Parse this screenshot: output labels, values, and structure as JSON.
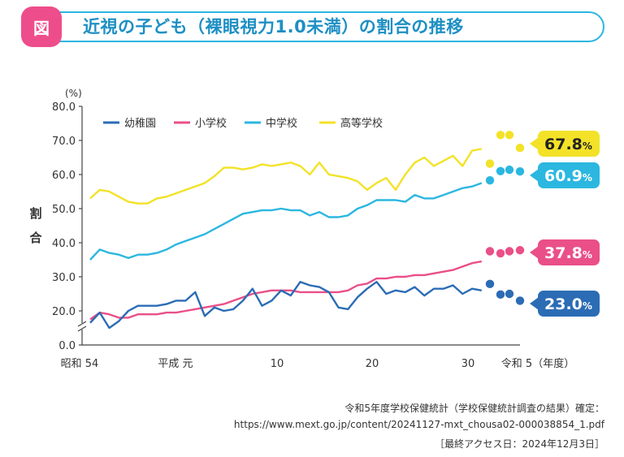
{
  "header": {
    "badge": "図",
    "title": "近視の子ども（裸眼視力1.0未満）の割合の推移"
  },
  "chart_data": {
    "type": "line",
    "ylabel": "割合",
    "yunit": "(%)",
    "ylim": [
      0,
      80
    ],
    "yticks": [
      "0.0",
      "20.0",
      "30.0",
      "40.0",
      "50.0",
      "60.0",
      "70.0",
      "80.0"
    ],
    "xtick_labels": [
      {
        "label": "昭和 54",
        "year": 1979
      },
      {
        "label": "平成 元",
        "year": 1989
      },
      {
        "label": "10",
        "year": 1998
      },
      {
        "label": "20",
        "year": 2008
      },
      {
        "label": "30",
        "year": 2018
      },
      {
        "label": "令和 5（年度）",
        "year": 2023
      }
    ],
    "legend": [
      {
        "name": "幼稚園",
        "color": "#2b6cb5"
      },
      {
        "name": "小学校",
        "color": "#ea4f88"
      },
      {
        "name": "中学校",
        "color": "#2bb7e0"
      },
      {
        "name": "高等学校",
        "color": "#f3e227"
      }
    ],
    "x_start_year": 1979,
    "series": [
      {
        "name": "幼稚園",
        "color": "#2b6cb5",
        "values": [
          16.5,
          19.5,
          15.0,
          17.0,
          20.0,
          21.5,
          21.5,
          21.5,
          22.0,
          23.0,
          23.0,
          25.5,
          18.5,
          21.0,
          20.0,
          20.5,
          23.0,
          26.5,
          21.5,
          23.0,
          26.0,
          24.5,
          28.5,
          27.5,
          27.0,
          25.5,
          21.0,
          20.5,
          24.0,
          26.5,
          28.5,
          25.0,
          26.0,
          25.5,
          27.0,
          24.5,
          26.5,
          26.5,
          27.5,
          25.0,
          26.5,
          26.0
        ],
        "dots": [
          27.9,
          24.8,
          25.0,
          23.0
        ]
      },
      {
        "name": "小学校",
        "color": "#ea4f88",
        "values": [
          17.5,
          19.5,
          19.0,
          18.0,
          18.0,
          19.0,
          19.0,
          19.0,
          19.5,
          19.5,
          20.0,
          20.5,
          21.0,
          21.5,
          22.0,
          23.0,
          24.0,
          25.0,
          25.5,
          26.0,
          26.0,
          26.0,
          25.5,
          25.5,
          25.5,
          25.5,
          25.5,
          26.0,
          27.5,
          28.0,
          29.5,
          29.5,
          30.0,
          30.0,
          30.5,
          30.5,
          31.0,
          31.5,
          32.0,
          33.0,
          34.0,
          34.5
        ],
        "dots": [
          37.5,
          36.9,
          37.5,
          37.8
        ]
      },
      {
        "name": "中学校",
        "color": "#2bb7e0",
        "values": [
          35.0,
          38.0,
          37.0,
          36.5,
          35.5,
          36.5,
          36.5,
          37.0,
          38.0,
          39.5,
          40.5,
          41.5,
          42.5,
          44.0,
          45.5,
          47.0,
          48.5,
          49.0,
          49.5,
          49.5,
          50.0,
          49.5,
          49.5,
          48.0,
          49.0,
          47.5,
          47.5,
          48.0,
          50.0,
          51.0,
          52.5,
          52.5,
          52.5,
          52.0,
          54.0,
          53.0,
          53.0,
          54.0,
          55.0,
          56.0,
          56.5,
          57.5
        ],
        "dots": [
          58.3,
          61.0,
          61.4,
          60.9
        ]
      },
      {
        "name": "高等学校",
        "color": "#f3e227",
        "values": [
          53.0,
          55.5,
          55.0,
          53.5,
          52.0,
          51.5,
          51.5,
          53.0,
          53.5,
          54.5,
          55.5,
          56.5,
          57.5,
          59.5,
          62.0,
          62.0,
          61.5,
          62.0,
          63.0,
          62.5,
          63.0,
          63.5,
          62.5,
          60.0,
          63.5,
          60.0,
          59.5,
          59.0,
          58.0,
          55.5,
          57.5,
          59.0,
          55.5,
          60.0,
          63.5,
          65.0,
          62.5,
          64.0,
          65.5,
          62.5,
          67.0,
          67.5
        ],
        "dots": [
          63.2,
          71.6,
          71.6,
          67.8
        ]
      }
    ],
    "dot_years": [
      2020,
      2021,
      2022,
      2023
    ],
    "callouts": [
      {
        "series": "高等学校",
        "value": "67.8",
        "unit": "%",
        "color": "#f3e227",
        "text_color": "#222222"
      },
      {
        "series": "中学校",
        "value": "60.9",
        "unit": "%",
        "color": "#2bb7e0",
        "text_color": "#ffffff"
      },
      {
        "series": "小学校",
        "value": "37.8",
        "unit": "%",
        "color": "#ea4f88",
        "text_color": "#ffffff"
      },
      {
        "series": "幼稚園",
        "value": "23.0",
        "unit": "%",
        "color": "#2b6cb5",
        "text_color": "#ffffff"
      }
    ]
  },
  "source": {
    "line1": "令和5年度学校保健統計（学校保健統計調査の結果）確定：",
    "line2": "https://www.mext.go.jp/content/20241127-mxt_chousa02-000038854_1.pdf",
    "line3": "［最終アクセス日：2024年12月3日］"
  }
}
